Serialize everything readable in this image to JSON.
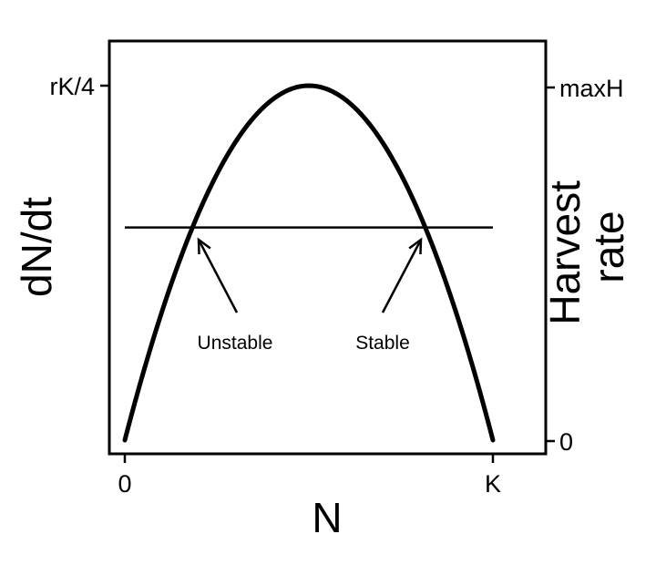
{
  "chart_data": {
    "type": "line",
    "xlabel": "N",
    "ylabel_left": "dN/dt",
    "ylabel_right": "Harvest rate",
    "x_ticks": [
      "0",
      "K"
    ],
    "y_ticks_left": [
      "rK/4"
    ],
    "y_ticks_right": [
      "maxH",
      "0"
    ],
    "xlim": [
      0,
      1
    ],
    "ylim": [
      0,
      1
    ],
    "series": [
      {
        "kind": "growth-curve",
        "x": [
          0,
          0.1,
          0.2,
          0.3,
          0.4,
          0.5,
          0.6,
          0.7,
          0.8,
          0.9,
          1
        ],
        "y": [
          0,
          0.36,
          0.64,
          0.84,
          0.96,
          1,
          0.96,
          0.84,
          0.64,
          0.36,
          0
        ]
      },
      {
        "kind": "harvest-line",
        "x": [
          0,
          1
        ],
        "y": [
          0.6,
          0.6
        ]
      }
    ],
    "annotations": [
      {
        "text": "Unstable",
        "x": 0.2,
        "y": 0.6
      },
      {
        "text": "Stable",
        "x": 0.8,
        "y": 0.6
      }
    ],
    "grid": false
  }
}
